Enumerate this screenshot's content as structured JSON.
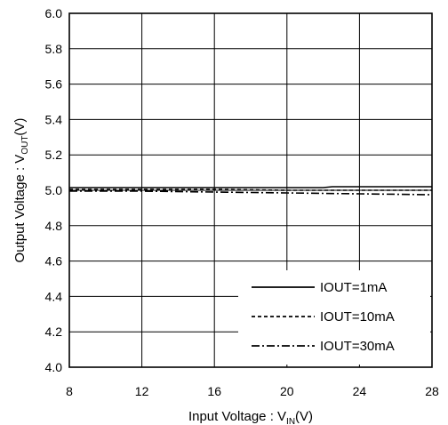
{
  "chart_data": {
    "type": "line",
    "xlabel": "Input Voltage : V",
    "xlabel_sub": "IN",
    "xlabel_unit": "(V)",
    "ylabel": "Output Voltage : V",
    "ylabel_sub": "OUT",
    "ylabel_unit": "(V)",
    "xlim": [
      8,
      28
    ],
    "ylim": [
      4.0,
      6.0
    ],
    "xticks": [
      8,
      12,
      16,
      20,
      24,
      28
    ],
    "yticks": [
      "4.0",
      "4.2",
      "4.4",
      "4.6",
      "4.8",
      "5.0",
      "5.2",
      "5.4",
      "5.6",
      "5.8",
      "6.0"
    ],
    "grid": true,
    "legend_position": "bottom-right",
    "series": [
      {
        "name": "IOUT=1mA",
        "style": "solid",
        "x": [
          8,
          12,
          16,
          20,
          22,
          22.5,
          24,
          28
        ],
        "y": [
          5.015,
          5.015,
          5.015,
          5.015,
          5.015,
          5.02,
          5.02,
          5.02
        ]
      },
      {
        "name": "IOUT=10mA",
        "style": "dashed",
        "x": [
          8,
          12,
          16,
          20,
          24,
          28
        ],
        "y": [
          5.005,
          5.005,
          5.005,
          5.0,
          5.0,
          5.0
        ]
      },
      {
        "name": "IOUT=30mA",
        "style": "dashdot",
        "x": [
          8,
          12,
          16,
          20,
          24,
          28
        ],
        "y": [
          4.995,
          4.995,
          4.99,
          4.985,
          4.98,
          4.975
        ]
      }
    ]
  }
}
